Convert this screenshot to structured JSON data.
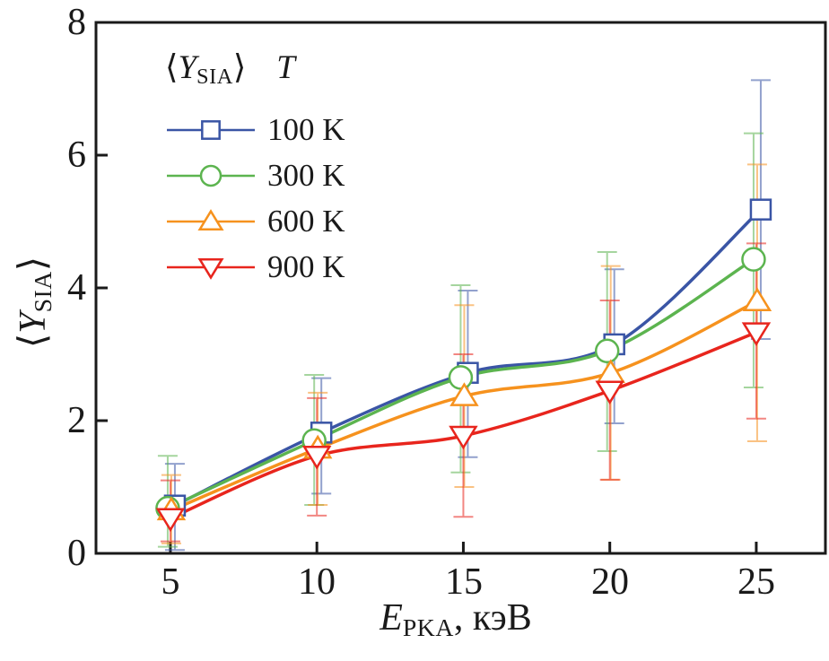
{
  "figure": {
    "background": "#ffffff",
    "frame_color": "#1a1a1a",
    "ylabel": {
      "pre": "⟨",
      "symbol": "Y",
      "sub": "SIA",
      "post": "⟩"
    },
    "xlabel": {
      "symbol": "E",
      "sub": "PKA",
      "post": ", кэВ"
    },
    "legend": {
      "header": {
        "pre": "⟨",
        "symbol": "Y",
        "sub": "SIA",
        "post": "⟩",
        "temp_symbol": "T"
      }
    }
  },
  "chart_data": {
    "type": "line",
    "title": "",
    "xlabel": "E_PKA, кэВ",
    "ylabel": "⟨Y_SIA⟩",
    "x": [
      5,
      10,
      15,
      20,
      25
    ],
    "xticks": [
      5,
      10,
      15,
      20,
      25
    ],
    "yticks": [
      0,
      2,
      4,
      6,
      8
    ],
    "xlim": [
      2.46,
      27.36
    ],
    "ylim": [
      0,
      8
    ],
    "grid": false,
    "legend_position": "upper-left",
    "error_bar_opacity": 0.55,
    "series": [
      {
        "name": "100 K",
        "color": "#3a55a5",
        "marker": "square",
        "values": [
          0.72,
          1.82,
          2.72,
          3.15,
          5.18
        ],
        "err_lo": [
          0.05,
          0.9,
          1.45,
          1.96,
          3.23
        ],
        "err_hi": [
          1.35,
          2.64,
          3.96,
          4.28,
          7.13
        ]
      },
      {
        "name": "300 K",
        "color": "#5cb44f",
        "marker": "circle",
        "values": [
          0.68,
          1.7,
          2.65,
          3.05,
          4.43
        ],
        "err_lo": [
          0.1,
          0.73,
          1.22,
          1.54,
          2.5
        ],
        "err_hi": [
          1.47,
          2.69,
          4.04,
          4.54,
          6.33
        ]
      },
      {
        "name": "600 K",
        "color": "#f6921e",
        "marker": "triangle-up",
        "values": [
          0.65,
          1.58,
          2.37,
          2.72,
          3.8
        ],
        "err_lo": [
          0.15,
          0.73,
          1.0,
          1.11,
          1.69
        ],
        "err_hi": [
          1.18,
          2.42,
          3.74,
          4.33,
          5.86
        ]
      },
      {
        "name": "900 K",
        "color": "#e8251d",
        "marker": "triangle-down",
        "values": [
          0.53,
          1.47,
          1.77,
          2.45,
          3.33
        ],
        "err_lo": [
          0.18,
          0.57,
          0.55,
          1.11,
          2.03
        ],
        "err_hi": [
          1.1,
          2.34,
          3.0,
          3.81,
          4.67
        ]
      }
    ]
  }
}
